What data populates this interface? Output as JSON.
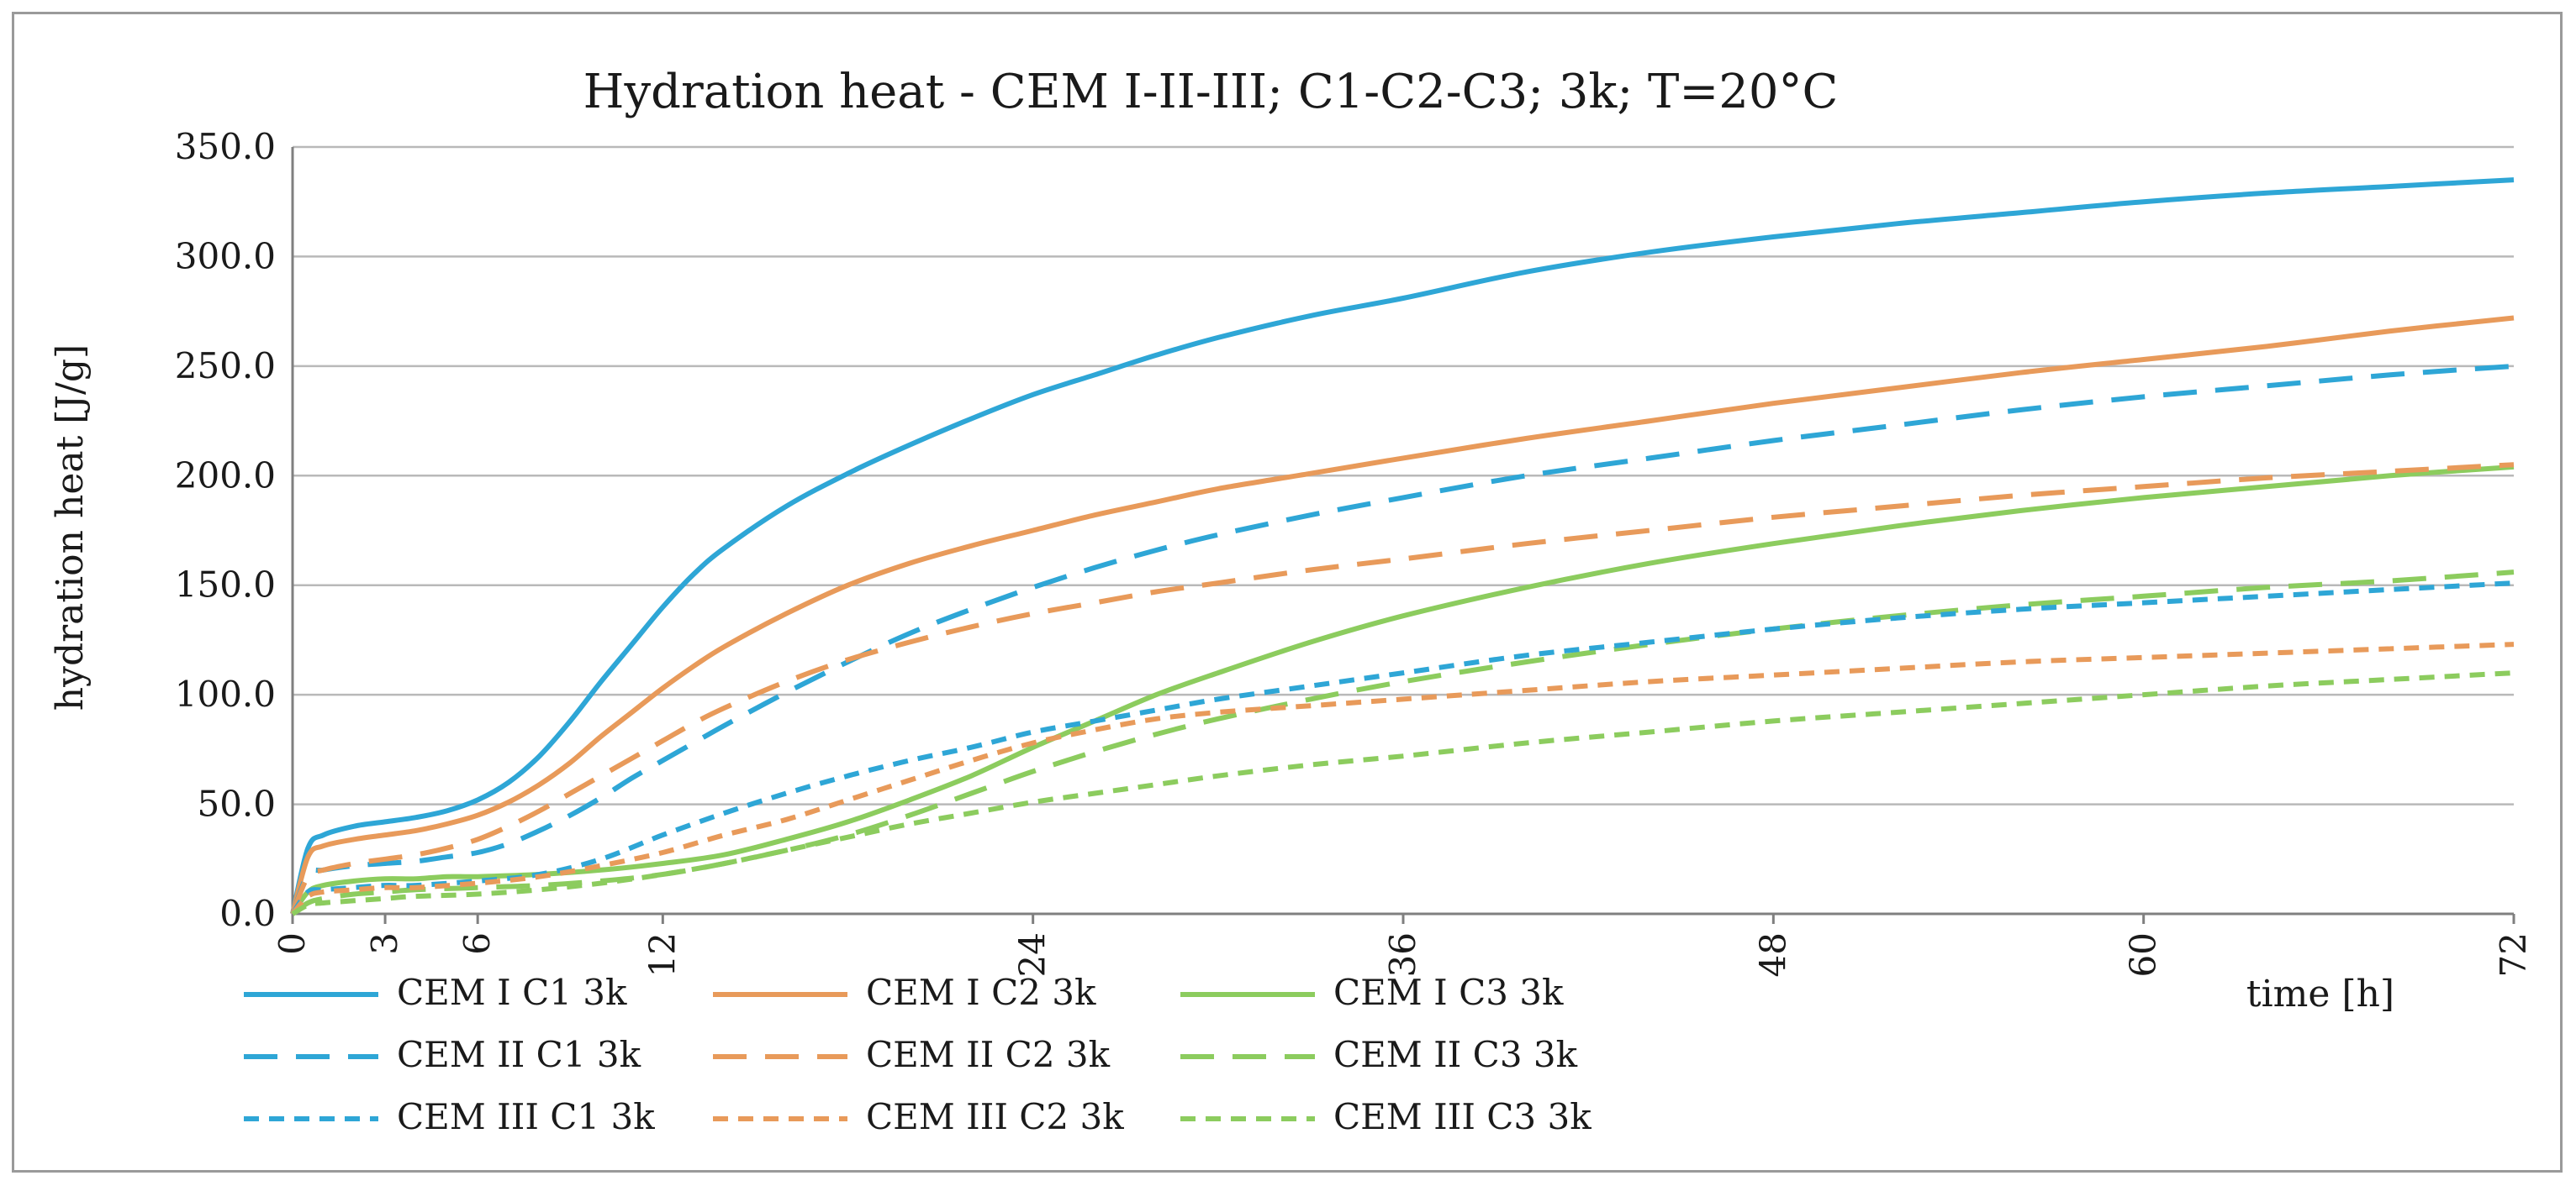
{
  "chart_data": {
    "type": "line",
    "title": "Hydration heat - CEM I-II-III; C1-C2-C3; 3k; T=20°C",
    "xlabel": "time [h]",
    "ylabel": "hydration heat [J/g]",
    "xlim": [
      0,
      72
    ],
    "ylim": [
      0,
      350
    ],
    "xticks": [
      0,
      3,
      6,
      12,
      24,
      36,
      48,
      60,
      72
    ],
    "xtick_labels": [
      "0",
      "3",
      "6",
      "12",
      "24",
      "36",
      "48",
      "60",
      "72"
    ],
    "yticks": [
      0,
      50,
      100,
      150,
      200,
      250,
      300,
      350
    ],
    "ytick_labels": [
      "0.0",
      "50.0",
      "100.0",
      "150.0",
      "200.0",
      "250.0",
      "300.0",
      "350.0"
    ],
    "grid": true,
    "legend_position": "bottom",
    "series": [
      {
        "name": "CEM I C1 3k",
        "color": "#2ea6d6",
        "dash": "solid",
        "x": [
          0,
          0.5,
          1,
          2,
          3,
          4,
          5,
          6,
          7,
          8,
          9,
          10,
          11,
          12,
          13,
          14,
          16,
          18,
          20,
          22,
          24,
          26,
          28,
          30,
          33,
          36,
          40,
          44,
          48,
          52,
          56,
          60,
          64,
          68,
          72
        ],
        "y": [
          0,
          30,
          36,
          40,
          42,
          44,
          47,
          52,
          60,
          72,
          88,
          106,
          123,
          140,
          155,
          167,
          186,
          201,
          214,
          226,
          237,
          246,
          255,
          263,
          273,
          281,
          293,
          302,
          309,
          315,
          320,
          325,
          329,
          332,
          335
        ]
      },
      {
        "name": "CEM I C2 3k",
        "color": "#e89a5a",
        "dash": "solid",
        "x": [
          0,
          0.5,
          1,
          2,
          3,
          4,
          5,
          6,
          7,
          8,
          9,
          10,
          11,
          12,
          13,
          14,
          16,
          18,
          20,
          22,
          24,
          26,
          28,
          30,
          33,
          36,
          40,
          44,
          48,
          52,
          56,
          60,
          64,
          68,
          72
        ],
        "y": [
          0,
          26,
          31,
          34,
          36,
          38,
          41,
          45,
          51,
          59,
          69,
          81,
          92,
          103,
          113,
          122,
          137,
          150,
          160,
          168,
          175,
          182,
          188,
          194,
          201,
          208,
          217,
          225,
          233,
          240,
          247,
          253,
          259,
          266,
          272
        ]
      },
      {
        "name": "CEM I C3 3k",
        "color": "#8ccc5e",
        "dash": "solid",
        "x": [
          0,
          0.5,
          1,
          2,
          3,
          4,
          5,
          6,
          8,
          10,
          12,
          14,
          16,
          18,
          20,
          22,
          24,
          26,
          28,
          30,
          33,
          36,
          40,
          44,
          48,
          52,
          56,
          60,
          64,
          68,
          72
        ],
        "y": [
          0,
          10,
          13,
          15,
          16,
          16,
          17,
          17,
          18,
          20,
          23,
          27,
          34,
          42,
          52,
          63,
          76,
          88,
          100,
          110,
          124,
          136,
          149,
          160,
          169,
          177,
          184,
          190,
          195,
          200,
          204
        ]
      },
      {
        "name": "CEM II C1 3k",
        "color": "#2ea6d6",
        "dash": "long",
        "x": [
          0,
          0.5,
          1,
          2,
          3,
          4,
          5,
          6,
          7,
          8,
          9,
          10,
          11,
          12,
          13,
          14,
          16,
          18,
          20,
          22,
          24,
          26,
          28,
          30,
          33,
          36,
          40,
          44,
          48,
          52,
          56,
          60,
          64,
          68,
          72
        ],
        "y": [
          0,
          18,
          20,
          22,
          23,
          24,
          26,
          28,
          32,
          38,
          45,
          53,
          62,
          70,
          78,
          86,
          101,
          115,
          128,
          139,
          149,
          158,
          166,
          173,
          182,
          190,
          200,
          208,
          216,
          223,
          230,
          236,
          241,
          246,
          250
        ]
      },
      {
        "name": "CEM II C2 3k",
        "color": "#e89a5a",
        "dash": "long",
        "x": [
          0,
          0.5,
          1,
          2,
          3,
          4,
          5,
          6,
          7,
          8,
          9,
          10,
          11,
          12,
          13,
          14,
          16,
          18,
          20,
          22,
          24,
          26,
          28,
          30,
          33,
          36,
          40,
          44,
          48,
          52,
          56,
          60,
          64,
          68,
          72
        ],
        "y": [
          0,
          17,
          20,
          23,
          25,
          27,
          30,
          34,
          40,
          47,
          55,
          63,
          71,
          79,
          87,
          94,
          106,
          116,
          124,
          131,
          137,
          142,
          147,
          151,
          157,
          162,
          169,
          175,
          181,
          186,
          191,
          195,
          199,
          202,
          205
        ]
      },
      {
        "name": "CEM II C3 3k",
        "color": "#8ccc5e",
        "dash": "long",
        "x": [
          0,
          0.5,
          1,
          2,
          3,
          4,
          6,
          8,
          10,
          12,
          14,
          16,
          18,
          20,
          22,
          24,
          26,
          28,
          30,
          33,
          36,
          40,
          44,
          48,
          52,
          56,
          60,
          64,
          68,
          72
        ],
        "y": [
          0,
          5,
          7,
          9,
          10,
          11,
          12,
          13,
          15,
          18,
          23,
          29,
          36,
          45,
          55,
          65,
          74,
          82,
          89,
          98,
          106,
          115,
          123,
          130,
          136,
          141,
          145,
          149,
          152,
          156
        ]
      },
      {
        "name": "CEM III C1 3k",
        "color": "#2ea6d6",
        "dash": "short",
        "x": [
          0,
          0.5,
          1,
          2,
          3,
          4,
          6,
          8,
          10,
          12,
          14,
          16,
          18,
          20,
          22,
          24,
          26,
          28,
          30,
          33,
          36,
          40,
          44,
          48,
          52,
          56,
          60,
          64,
          68,
          72
        ],
        "y": [
          0,
          10,
          11,
          12,
          13,
          13,
          15,
          18,
          25,
          36,
          46,
          55,
          63,
          70,
          76,
          83,
          88,
          93,
          98,
          104,
          110,
          118,
          124,
          130,
          135,
          139,
          142,
          145,
          148,
          151
        ]
      },
      {
        "name": "CEM III C2 3k",
        "color": "#e89a5a",
        "dash": "short",
        "x": [
          0,
          0.5,
          1,
          2,
          3,
          4,
          6,
          8,
          10,
          12,
          14,
          16,
          18,
          20,
          22,
          24,
          26,
          28,
          30,
          33,
          36,
          40,
          44,
          48,
          52,
          56,
          60,
          64,
          68,
          72
        ],
        "y": [
          0,
          8,
          10,
          11,
          12,
          12,
          14,
          17,
          22,
          28,
          36,
          43,
          52,
          61,
          70,
          78,
          84,
          89,
          92,
          95,
          98,
          102,
          106,
          109,
          112,
          115,
          117,
          119,
          121,
          123
        ]
      },
      {
        "name": "CEM III C3 3k",
        "color": "#8ccc5e",
        "dash": "short",
        "x": [
          0,
          0.5,
          1,
          2,
          3,
          4,
          6,
          8,
          10,
          12,
          14,
          16,
          18,
          20,
          22,
          24,
          26,
          28,
          30,
          33,
          36,
          40,
          44,
          48,
          52,
          56,
          60,
          64,
          68,
          72
        ],
        "y": [
          0,
          4,
          5,
          6,
          7,
          8,
          9,
          11,
          14,
          18,
          23,
          29,
          35,
          41,
          46,
          51,
          55,
          59,
          63,
          68,
          72,
          78,
          83,
          88,
          92,
          96,
          100,
          104,
          107,
          110
        ]
      }
    ]
  }
}
